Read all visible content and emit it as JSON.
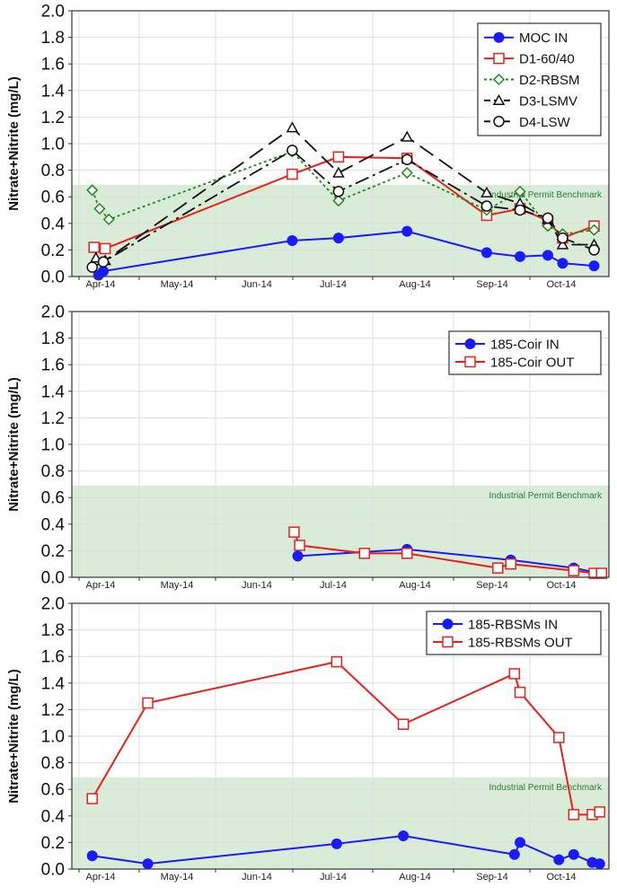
{
  "colors": {
    "blue": "#1a1aff",
    "red": "#e8201a",
    "green": "#1a8a1a",
    "black": "#111111",
    "benchmark_fill": "#d9ecd7",
    "grid": "#dddddd"
  },
  "chart_data": [
    {
      "type": "line",
      "panel": "top",
      "ylabel": "Nitrate+Nitrite (mg/L)",
      "ylim": [
        0,
        2.0
      ],
      "yticks": [
        "0.0",
        "0.2",
        "0.4",
        "0.6",
        "0.8",
        "1.0",
        "1.2",
        "1.4",
        "1.6",
        "1.8",
        "2.0"
      ],
      "xticks": [
        "Apr-14",
        "May-14",
        "Jun-14",
        "Jul-14",
        "Aug-14",
        "Sep-14",
        "Oct-14"
      ],
      "benchmark_value": 0.69,
      "benchmark_label": "Industrial Permit Benchmark",
      "legend_position": "top-right",
      "series": [
        {
          "name": "MOC IN",
          "color": "blue",
          "dash": "solid",
          "marker": "filled-circle",
          "x": [
            0.72,
            0.85,
            5.95,
            7.2,
            9.05,
            11.2,
            12.1,
            12.85,
            13.25,
            14.1
          ],
          "values": [
            0.01,
            0.04,
            0.27,
            0.29,
            0.34,
            0.18,
            0.15,
            0.16,
            0.1,
            0.08
          ]
        },
        {
          "name": "D1-60/40",
          "color": "red",
          "dash": "solid",
          "marker": "open-square",
          "x": [
            0.6,
            0.9,
            5.95,
            7.2,
            9.05,
            11.2,
            12.1,
            12.85,
            13.25,
            14.1
          ],
          "values": [
            0.22,
            0.21,
            0.77,
            0.9,
            0.89,
            0.46,
            0.51,
            0.42,
            0.29,
            0.38
          ]
        },
        {
          "name": "D2-RBSM",
          "color": "green",
          "dash": "dot",
          "marker": "open-diamond",
          "x": [
            0.55,
            0.75,
            1.0,
            5.95,
            7.2,
            9.05,
            11.2,
            12.1,
            12.85,
            13.25,
            14.1
          ],
          "values": [
            0.65,
            0.51,
            0.43,
            0.94,
            0.57,
            0.78,
            0.5,
            0.64,
            0.38,
            0.32,
            0.35
          ]
        },
        {
          "name": "D3-LSMV",
          "color": "black",
          "dash": "longdash",
          "marker": "open-triangle",
          "x": [
            0.65,
            0.9,
            5.95,
            7.2,
            9.05,
            11.2,
            12.1,
            12.85,
            13.25,
            14.1
          ],
          "values": [
            0.14,
            0.12,
            1.12,
            0.78,
            1.05,
            0.63,
            0.55,
            0.43,
            0.24,
            0.24
          ]
        },
        {
          "name": "D4-LSW",
          "color": "black",
          "dash": "dashdot",
          "marker": "open-circle",
          "x": [
            0.55,
            0.85,
            5.95,
            7.2,
            9.05,
            11.2,
            12.1,
            12.85,
            13.25,
            14.1
          ],
          "values": [
            0.07,
            0.11,
            0.95,
            0.64,
            0.88,
            0.53,
            0.5,
            0.44,
            0.29,
            0.2
          ]
        }
      ]
    },
    {
      "type": "line",
      "panel": "middle",
      "ylabel": "Nitrate+Nitrite (mg/L)",
      "ylim": [
        0,
        2.0
      ],
      "yticks": [
        "0.0",
        "0.2",
        "0.4",
        "0.6",
        "0.8",
        "1.0",
        "1.2",
        "1.4",
        "1.6",
        "1.8",
        "2.0"
      ],
      "xticks": [
        "Apr-14",
        "May-14",
        "Jun-14",
        "Jul-14",
        "Aug-14",
        "Sep-14",
        "Oct-14"
      ],
      "benchmark_value": 0.69,
      "benchmark_label": "Industrial Permit Benchmark",
      "legend_position": "top-right",
      "series": [
        {
          "name": "185-Coir IN",
          "color": "blue",
          "dash": "solid",
          "marker": "filled-circle",
          "x": [
            6.1,
            9.05,
            11.85,
            13.55,
            14.25
          ],
          "values": [
            0.16,
            0.21,
            0.13,
            0.07,
            0.03
          ]
        },
        {
          "name": "185-Coir OUT",
          "color": "red",
          "dash": "solid",
          "marker": "open-square",
          "x": [
            6.0,
            6.15,
            7.9,
            9.05,
            11.5,
            11.85,
            13.55,
            14.1,
            14.3
          ],
          "values": [
            0.34,
            0.24,
            0.18,
            0.18,
            0.07,
            0.1,
            0.05,
            0.03,
            0.03
          ]
        }
      ]
    },
    {
      "type": "line",
      "panel": "bottom",
      "ylabel": "Nitrate+Nitrite (mg/L)",
      "ylim": [
        0,
        2.0
      ],
      "yticks": [
        "0.0",
        "0.2",
        "0.4",
        "0.6",
        "0.8",
        "1.0",
        "1.2",
        "1.4",
        "1.6",
        "1.8",
        "2.0"
      ],
      "xticks": [
        "Apr-14",
        "May-14",
        "Jun-14",
        "Jul-14",
        "Aug-14",
        "Sep-14",
        "Oct-14"
      ],
      "benchmark_value": 0.69,
      "benchmark_label": "Industrial Permit Benchmark",
      "legend_position": "top-right",
      "series": [
        {
          "name": "185-RBSMs IN",
          "color": "blue",
          "dash": "solid",
          "marker": "filled-circle",
          "x": [
            0.55,
            2.05,
            7.15,
            8.95,
            11.95,
            12.1,
            13.15,
            13.55,
            14.05,
            14.25
          ],
          "values": [
            0.1,
            0.04,
            0.19,
            0.25,
            0.11,
            0.2,
            0.07,
            0.11,
            0.05,
            0.04
          ]
        },
        {
          "name": "185-RBSMs OUT",
          "color": "red",
          "dash": "solid",
          "marker": "open-square",
          "x": [
            0.55,
            2.05,
            7.15,
            8.95,
            11.95,
            12.1,
            13.15,
            13.55,
            14.05,
            14.25
          ],
          "values": [
            0.53,
            1.25,
            1.56,
            1.09,
            1.47,
            1.33,
            0.99,
            0.41,
            0.41,
            0.43
          ]
        }
      ]
    }
  ]
}
